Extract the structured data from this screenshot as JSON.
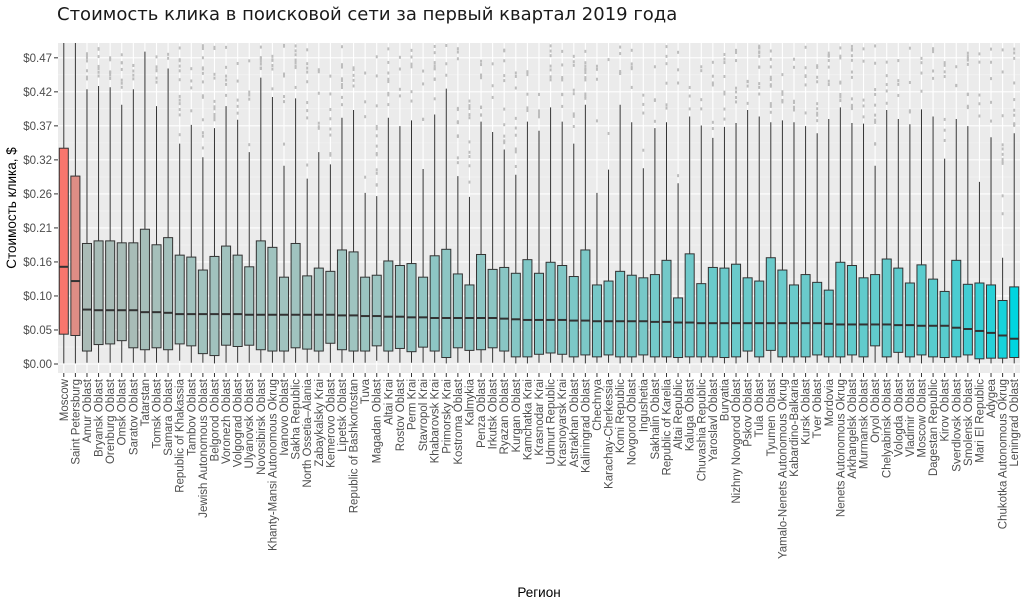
{
  "chart_data": {
    "type": "boxplot",
    "title": "Стоимость клика в поисковой сети за первый квартал 2019 года",
    "xlabel": "Регион",
    "ylabel": "Стоимость клика, $",
    "ylim": [
      0,
      0.5
    ],
    "yticks": [
      0.0,
      0.0525,
      0.105,
      0.1575,
      0.21,
      0.2625,
      0.315,
      0.3675,
      0.42,
      0.4725
    ],
    "ytick_labels": [
      "$0.00",
      "$0.05",
      "$0.10",
      "$0.16",
      "$0.21",
      "$0.26",
      "$0.32",
      "$0.37",
      "$0.42",
      "$0.47"
    ],
    "grid": true,
    "legend": "none",
    "fill_colors": {
      "low_median": "#00d5e0",
      "mid_median": "#9fc4c0",
      "high_median": "#f8766d"
    },
    "outlier_color": "#bdbdbd",
    "series": [
      {
        "name": "Moscow",
        "q1": 0.046,
        "median": 0.15,
        "q3": 0.333,
        "lower": 0.001,
        "upper": 0.6
      },
      {
        "name": "Saint Petersburg",
        "q1": 0.044,
        "median": 0.128,
        "q3": 0.29,
        "lower": 0.001,
        "upper": 0.6
      },
      {
        "name": "Amur Oblast",
        "q1": 0.02,
        "median": 0.084,
        "q3": 0.186,
        "lower": 0.002,
        "upper": 0.424
      },
      {
        "name": "Bryansk Oblast",
        "q1": 0.03,
        "median": 0.083,
        "q3": 0.19,
        "lower": 0.002,
        "upper": 0.429
      },
      {
        "name": "Orenburg Oblast",
        "q1": 0.031,
        "median": 0.083,
        "q3": 0.19,
        "lower": 0.002,
        "upper": 0.427
      },
      {
        "name": "Omsk Oblast",
        "q1": 0.036,
        "median": 0.083,
        "q3": 0.187,
        "lower": 0.002,
        "upper": 0.4
      },
      {
        "name": "Saratov Oblast",
        "q1": 0.025,
        "median": 0.083,
        "q3": 0.187,
        "lower": 0.002,
        "upper": 0.424
      },
      {
        "name": "Tatarstan",
        "q1": 0.022,
        "median": 0.08,
        "q3": 0.208,
        "lower": 0.002,
        "upper": 0.482
      },
      {
        "name": "Tomsk Oblast",
        "q1": 0.025,
        "median": 0.08,
        "q3": 0.184,
        "lower": 0.002,
        "upper": 0.398
      },
      {
        "name": "Samara Oblast",
        "q1": 0.022,
        "median": 0.079,
        "q3": 0.195,
        "lower": 0.002,
        "upper": 0.456
      },
      {
        "name": "Republic of Khakassia",
        "q1": 0.031,
        "median": 0.077,
        "q3": 0.168,
        "lower": 0.005,
        "upper": 0.34
      },
      {
        "name": "Tambov Oblast",
        "q1": 0.028,
        "median": 0.077,
        "q3": 0.165,
        "lower": 0.002,
        "upper": 0.369
      },
      {
        "name": "Jewish Autonomous Oblast",
        "q1": 0.016,
        "median": 0.077,
        "q3": 0.145,
        "lower": 0.002,
        "upper": 0.319
      },
      {
        "name": "Belgorod Oblast",
        "q1": 0.013,
        "median": 0.077,
        "q3": 0.166,
        "lower": 0.001,
        "upper": 0.364
      },
      {
        "name": "Voronezh Oblast",
        "q1": 0.029,
        "median": 0.077,
        "q3": 0.182,
        "lower": 0.002,
        "upper": 0.398
      },
      {
        "name": "Volgograd Oblast",
        "q1": 0.027,
        "median": 0.077,
        "q3": 0.168,
        "lower": 0.002,
        "upper": 0.377
      },
      {
        "name": "Ulyanovsk Oblast",
        "q1": 0.029,
        "median": 0.076,
        "q3": 0.15,
        "lower": 0.002,
        "upper": 0.327
      },
      {
        "name": "Novosibirsk Oblast",
        "q1": 0.022,
        "median": 0.076,
        "q3": 0.19,
        "lower": 0.002,
        "upper": 0.442
      },
      {
        "name": "Khanty-Mansi Autonomous Okrug",
        "q1": 0.02,
        "median": 0.076,
        "q3": 0.18,
        "lower": 0.002,
        "upper": 0.412
      },
      {
        "name": "Ivanovo Oblast",
        "q1": 0.02,
        "median": 0.076,
        "q3": 0.134,
        "lower": 0.002,
        "upper": 0.306
      },
      {
        "name": "Sakha Republic",
        "q1": 0.025,
        "median": 0.076,
        "q3": 0.186,
        "lower": 0.002,
        "upper": 0.41
      },
      {
        "name": "North Ossetia–Alania",
        "q1": 0.023,
        "median": 0.076,
        "q3": 0.136,
        "lower": 0.002,
        "upper": 0.286
      },
      {
        "name": "Zabaykalsky Krai",
        "q1": 0.02,
        "median": 0.076,
        "q3": 0.148,
        "lower": 0.002,
        "upper": 0.327
      },
      {
        "name": "Kemerovo Oblast",
        "q1": 0.032,
        "median": 0.076,
        "q3": 0.143,
        "lower": 0.002,
        "upper": 0.308
      },
      {
        "name": "Lipetsk Oblast",
        "q1": 0.022,
        "median": 0.075,
        "q3": 0.176,
        "lower": 0.002,
        "upper": 0.38
      },
      {
        "name": "Republic of Bashkortostan",
        "q1": 0.02,
        "median": 0.075,
        "q3": 0.173,
        "lower": 0.002,
        "upper": 0.392
      },
      {
        "name": "Tuva",
        "q1": 0.02,
        "median": 0.074,
        "q3": 0.134,
        "lower": 0.002,
        "upper": 0.264
      },
      {
        "name": "Magadan Oblast",
        "q1": 0.028,
        "median": 0.074,
        "q3": 0.137,
        "lower": 0.005,
        "upper": 0.259
      },
      {
        "name": "Altai Krai",
        "q1": 0.02,
        "median": 0.073,
        "q3": 0.159,
        "lower": 0.002,
        "upper": 0.38
      },
      {
        "name": "Rostov Oblast",
        "q1": 0.024,
        "median": 0.073,
        "q3": 0.152,
        "lower": 0.002,
        "upper": 0.367
      },
      {
        "name": "Perm Krai",
        "q1": 0.019,
        "median": 0.072,
        "q3": 0.155,
        "lower": 0.002,
        "upper": 0.376
      },
      {
        "name": "Stavropol Krai",
        "q1": 0.026,
        "median": 0.072,
        "q3": 0.134,
        "lower": 0.002,
        "upper": 0.301
      },
      {
        "name": "Khabarovsk Krai",
        "q1": 0.02,
        "median": 0.071,
        "q3": 0.167,
        "lower": 0.002,
        "upper": 0.385
      },
      {
        "name": "Primorsky Krai",
        "q1": 0.01,
        "median": 0.071,
        "q3": 0.177,
        "lower": 0.001,
        "upper": 0.425
      },
      {
        "name": "Kostroma Oblast",
        "q1": 0.025,
        "median": 0.071,
        "q3": 0.139,
        "lower": 0.002,
        "upper": 0.29
      },
      {
        "name": "Kalmykia",
        "q1": 0.021,
        "median": 0.071,
        "q3": 0.122,
        "lower": 0.002,
        "upper": 0.258
      },
      {
        "name": "Penza Oblast",
        "q1": 0.022,
        "median": 0.071,
        "q3": 0.169,
        "lower": 0.002,
        "upper": 0.374
      },
      {
        "name": "Irkutsk Oblast",
        "q1": 0.025,
        "median": 0.071,
        "q3": 0.146,
        "lower": 0.002,
        "upper": 0.358
      },
      {
        "name": "Ryazan Oblast",
        "q1": 0.02,
        "median": 0.07,
        "q3": 0.149,
        "lower": 0.002,
        "upper": 0.331
      },
      {
        "name": "Kurgan Oblast",
        "q1": 0.011,
        "median": 0.069,
        "q3": 0.14,
        "lower": 0.001,
        "upper": 0.292
      },
      {
        "name": "Kamchatka Krai",
        "q1": 0.011,
        "median": 0.068,
        "q3": 0.161,
        "lower": 0.001,
        "upper": 0.374
      },
      {
        "name": "Krasnodar Krai",
        "q1": 0.015,
        "median": 0.068,
        "q3": 0.14,
        "lower": 0.002,
        "upper": 0.36
      },
      {
        "name": "Udmurt Republic",
        "q1": 0.017,
        "median": 0.068,
        "q3": 0.157,
        "lower": 0.002,
        "upper": 0.396
      },
      {
        "name": "Krasnoyarsk Krai",
        "q1": 0.015,
        "median": 0.068,
        "q3": 0.152,
        "lower": 0.002,
        "upper": 0.374
      },
      {
        "name": "Astrakhan Oblast",
        "q1": 0.011,
        "median": 0.067,
        "q3": 0.135,
        "lower": 0.002,
        "upper": 0.34
      },
      {
        "name": "Kaliningrad Oblast",
        "q1": 0.014,
        "median": 0.067,
        "q3": 0.176,
        "lower": 0.001,
        "upper": 0.4
      },
      {
        "name": "Chechnya",
        "q1": 0.011,
        "median": 0.066,
        "q3": 0.122,
        "lower": 0.002,
        "upper": 0.264
      },
      {
        "name": "Karachay-Cherkessia",
        "q1": 0.014,
        "median": 0.066,
        "q3": 0.128,
        "lower": 0.002,
        "upper": 0.3
      },
      {
        "name": "Komi Republic",
        "q1": 0.011,
        "median": 0.066,
        "q3": 0.143,
        "lower": 0.001,
        "upper": 0.4
      },
      {
        "name": "Novgorod Oblast",
        "q1": 0.011,
        "median": 0.066,
        "q3": 0.137,
        "lower": 0.002,
        "upper": 0.373
      },
      {
        "name": "Ingushetia",
        "q1": 0.014,
        "median": 0.066,
        "q3": 0.133,
        "lower": 0.002,
        "upper": 0.302
      },
      {
        "name": "Sakhalin Oblast",
        "q1": 0.011,
        "median": 0.065,
        "q3": 0.138,
        "lower": 0.002,
        "upper": 0.364
      },
      {
        "name": "Republic of Karelia",
        "q1": 0.011,
        "median": 0.065,
        "q3": 0.16,
        "lower": 0.002,
        "upper": 0.373
      },
      {
        "name": "Altai Republic",
        "q1": 0.01,
        "median": 0.064,
        "q3": 0.102,
        "lower": 0.002,
        "upper": 0.279
      },
      {
        "name": "Kaluga Oblast",
        "q1": 0.011,
        "median": 0.064,
        "q3": 0.17,
        "lower": 0.001,
        "upper": 0.382
      },
      {
        "name": "Chuvashia Republic",
        "q1": 0.011,
        "median": 0.063,
        "q3": 0.124,
        "lower": 0.002,
        "upper": 0.368
      },
      {
        "name": "Yaroslavl Oblast",
        "q1": 0.011,
        "median": 0.063,
        "q3": 0.149,
        "lower": 0.002,
        "upper": 0.349
      },
      {
        "name": "Buryatia",
        "q1": 0.01,
        "median": 0.063,
        "q3": 0.148,
        "lower": 0.001,
        "upper": 0.366
      },
      {
        "name": "Nizhny Novgorod Oblast",
        "q1": 0.011,
        "median": 0.063,
        "q3": 0.154,
        "lower": 0.001,
        "upper": 0.372
      },
      {
        "name": "Pskov Oblast",
        "q1": 0.02,
        "median": 0.063,
        "q3": 0.133,
        "lower": 0.002,
        "upper": 0.392
      },
      {
        "name": "Tula Oblast",
        "q1": 0.011,
        "median": 0.063,
        "q3": 0.128,
        "lower": 0.002,
        "upper": 0.382
      },
      {
        "name": "Tyumen Oblast",
        "q1": 0.021,
        "median": 0.063,
        "q3": 0.164,
        "lower": 0.002,
        "upper": 0.373
      },
      {
        "name": "Yamalo-Nenets Autonomous Okrug",
        "q1": 0.011,
        "median": 0.063,
        "q3": 0.145,
        "lower": 0.002,
        "upper": 0.376
      },
      {
        "name": "Kabardino-Balkaria",
        "q1": 0.011,
        "median": 0.063,
        "q3": 0.122,
        "lower": 0.002,
        "upper": 0.373
      },
      {
        "name": "Kursk Oblast",
        "q1": 0.011,
        "median": 0.063,
        "q3": 0.138,
        "lower": 0.002,
        "upper": 0.367
      },
      {
        "name": "Tver Oblast",
        "q1": 0.014,
        "median": 0.063,
        "q3": 0.126,
        "lower": 0.002,
        "upper": 0.356
      },
      {
        "name": "Mordovia",
        "q1": 0.011,
        "median": 0.062,
        "q3": 0.114,
        "lower": 0.002,
        "upper": 0.378
      },
      {
        "name": "Nenets Autonomous Okrug",
        "q1": 0.011,
        "median": 0.061,
        "q3": 0.157,
        "lower": 0.001,
        "upper": 0.396
      },
      {
        "name": "Arkhangelsk Oblast",
        "q1": 0.014,
        "median": 0.061,
        "q3": 0.152,
        "lower": 0.002,
        "upper": 0.372
      },
      {
        "name": "Murmansk Oblast",
        "q1": 0.011,
        "median": 0.061,
        "q3": 0.133,
        "lower": 0.002,
        "upper": 0.371
      },
      {
        "name": "Oryol Oblast",
        "q1": 0.028,
        "median": 0.061,
        "q3": 0.138,
        "lower": 0.002,
        "upper": 0.306
      },
      {
        "name": "Chelyabinsk Oblast",
        "q1": 0.011,
        "median": 0.061,
        "q3": 0.162,
        "lower": 0.002,
        "upper": 0.392
      },
      {
        "name": "Vologda Oblast",
        "q1": 0.018,
        "median": 0.06,
        "q3": 0.148,
        "lower": 0.001,
        "upper": 0.378
      },
      {
        "name": "Vladimir Oblast",
        "q1": 0.011,
        "median": 0.06,
        "q3": 0.125,
        "lower": 0.002,
        "upper": 0.37
      },
      {
        "name": "Moscow Oblast",
        "q1": 0.014,
        "median": 0.059,
        "q3": 0.153,
        "lower": 0.001,
        "upper": 0.393
      },
      {
        "name": "Dagestan Republic",
        "q1": 0.011,
        "median": 0.059,
        "q3": 0.131,
        "lower": 0.002,
        "upper": 0.382
      },
      {
        "name": "Kirov Oblast",
        "q1": 0.01,
        "median": 0.059,
        "q3": 0.112,
        "lower": 0.002,
        "upper": 0.317
      },
      {
        "name": "Sverdlovsk Oblast",
        "q1": 0.011,
        "median": 0.056,
        "q3": 0.16,
        "lower": 0.002,
        "upper": 0.378
      },
      {
        "name": "Smolensk Oblast",
        "q1": 0.014,
        "median": 0.054,
        "q3": 0.123,
        "lower": 0.002,
        "upper": 0.367
      },
      {
        "name": "Mari El Republic",
        "q1": 0.008,
        "median": 0.051,
        "q3": 0.125,
        "lower": 0.001,
        "upper": 0.281
      },
      {
        "name": "Adygea",
        "q1": 0.009,
        "median": 0.048,
        "q3": 0.122,
        "lower": 0.001,
        "upper": 0.35
      },
      {
        "name": "Chukotka Autonomous Okrug",
        "q1": 0.009,
        "median": 0.044,
        "q3": 0.098,
        "lower": 0.001,
        "upper": 0.164
      },
      {
        "name": "Leningrad Oblast",
        "q1": 0.01,
        "median": 0.039,
        "q3": 0.119,
        "lower": 0.001,
        "upper": 0.356
      }
    ]
  }
}
